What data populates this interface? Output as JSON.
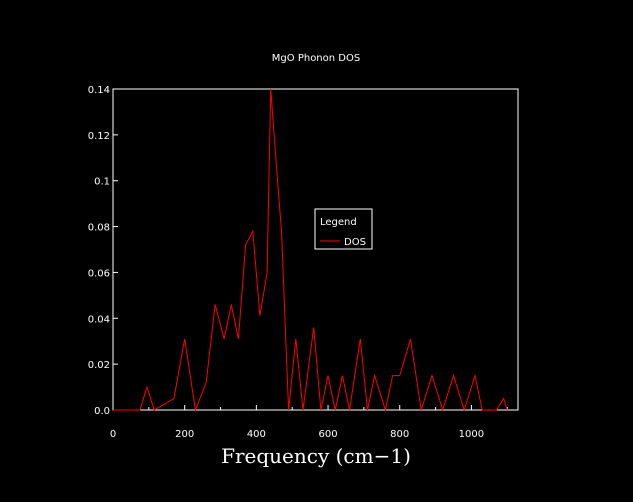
{
  "chart_data": {
    "type": "line",
    "title": "MgO Phonon DOS",
    "xlabel": "Frequency (cm−1)",
    "ylabel": "",
    "xlim": [
      0,
      1130
    ],
    "ylim": [
      0,
      0.14
    ],
    "xticks": [
      0,
      200,
      400,
      600,
      800,
      1000
    ],
    "xtick_labels": [
      "0",
      "200",
      "400",
      "600",
      "800",
      "1000"
    ],
    "yticks": [
      0,
      0.02,
      0.04,
      0.06,
      0.08,
      0.1,
      0.12,
      0.14
    ],
    "ytick_labels": [
      "0.0",
      "0.02",
      "0.04",
      "0.06",
      "0.08",
      "0.1",
      "0.12",
      "0.14"
    ],
    "grid": false,
    "legend": {
      "title": "Legend",
      "placement": "center-right"
    },
    "series": [
      {
        "name": "DOS",
        "color": "#ff0000",
        "x": [
          0,
          75,
          95,
          115,
          170,
          200,
          230,
          260,
          285,
          310,
          330,
          350,
          370,
          390,
          410,
          430,
          440,
          460,
          470,
          490,
          510,
          530,
          560,
          580,
          600,
          620,
          640,
          660,
          690,
          710,
          730,
          760,
          780,
          800,
          830,
          860,
          890,
          920,
          950,
          980,
          1010,
          1030,
          1070,
          1090,
          1100
        ],
        "y": [
          0,
          0,
          0.01,
          0,
          0.005,
          0.031,
          0,
          0.012,
          0.046,
          0.031,
          0.046,
          0.031,
          0.072,
          0.078,
          0.041,
          0.06,
          0.14,
          0.098,
          0.078,
          0,
          0.031,
          0,
          0.036,
          0,
          0.015,
          0,
          0.015,
          0,
          0.031,
          0,
          0.015,
          0,
          0.015,
          0.015,
          0.031,
          0,
          0.015,
          0,
          0.015,
          0,
          0.015,
          0,
          0,
          0.005,
          0
        ]
      }
    ]
  }
}
